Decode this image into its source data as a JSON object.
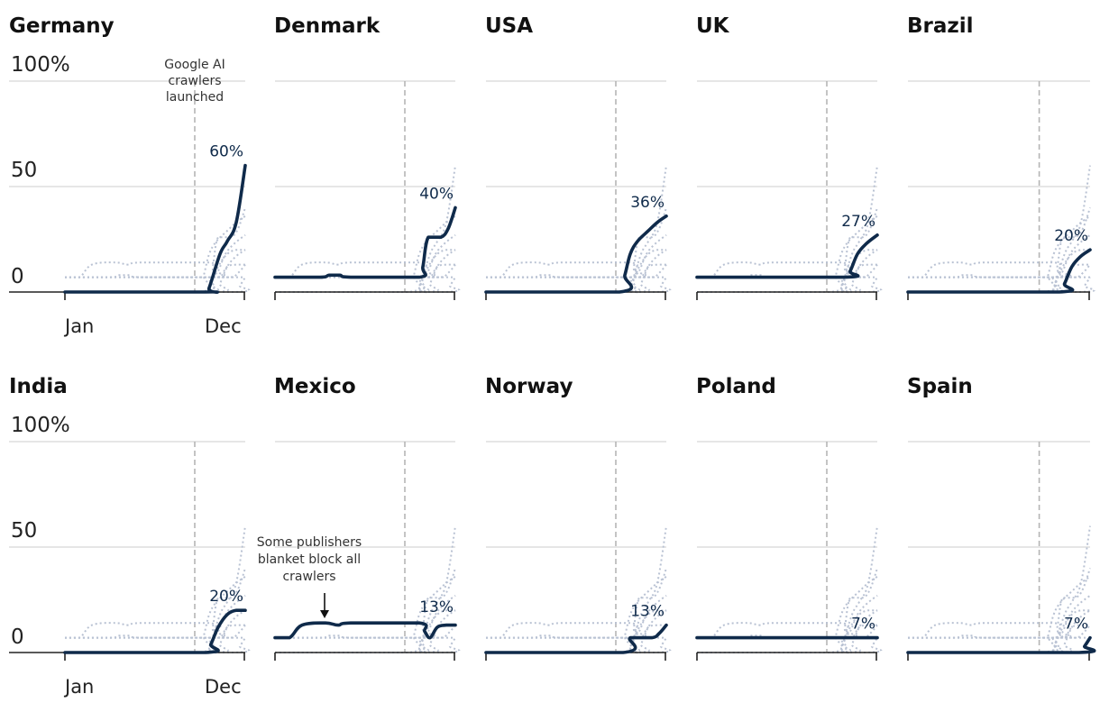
{
  "chart_data": {
    "type": "line",
    "x_range": [
      "Jan",
      "Dec"
    ],
    "xticks": [
      "Jan",
      "Dec"
    ],
    "y_range": [
      0,
      100
    ],
    "yticks": [
      "100%",
      "50",
      "0"
    ],
    "grid": true,
    "launch_marker_fraction_of_year": 0.79,
    "annotations": {
      "launch": "Google AI crawlers launched",
      "mexico": "Some publishers blanket block all crawlers"
    },
    "panels": [
      {
        "country": "Germany",
        "end_label": "60%",
        "points": [
          [
            0,
            0
          ],
          [
            0.78,
            0
          ],
          [
            0.8,
            2
          ],
          [
            0.86,
            18
          ],
          [
            0.9,
            24
          ],
          [
            0.95,
            33
          ],
          [
            1.0,
            60
          ]
        ]
      },
      {
        "country": "Denmark",
        "end_label": "40%",
        "points": [
          [
            0,
            7
          ],
          [
            0.25,
            7
          ],
          [
            0.3,
            8
          ],
          [
            0.36,
            8
          ],
          [
            0.42,
            7
          ],
          [
            0.8,
            7
          ],
          [
            0.82,
            12
          ],
          [
            0.85,
            26
          ],
          [
            0.92,
            26
          ],
          [
            0.96,
            30
          ],
          [
            1.0,
            40
          ]
        ]
      },
      {
        "country": "USA",
        "end_label": "36%",
        "points": [
          [
            0,
            0
          ],
          [
            0.74,
            0
          ],
          [
            0.77,
            8
          ],
          [
            0.8,
            18
          ],
          [
            0.84,
            24
          ],
          [
            0.9,
            29
          ],
          [
            0.95,
            33
          ],
          [
            1.0,
            36
          ]
        ]
      },
      {
        "country": "UK",
        "end_label": "27%",
        "points": [
          [
            0,
            7
          ],
          [
            0.82,
            7
          ],
          [
            0.85,
            10
          ],
          [
            0.89,
            18
          ],
          [
            0.94,
            23
          ],
          [
            1.0,
            27
          ]
        ]
      },
      {
        "country": "Brazil",
        "end_label": "20%",
        "points": [
          [
            0,
            0
          ],
          [
            0.83,
            0
          ],
          [
            0.86,
            4
          ],
          [
            0.9,
            12
          ],
          [
            0.95,
            17
          ],
          [
            1.0,
            20
          ]
        ]
      },
      {
        "country": "India",
        "end_label": "20%",
        "points": [
          [
            0,
            0
          ],
          [
            0.78,
            0
          ],
          [
            0.81,
            4
          ],
          [
            0.85,
            12
          ],
          [
            0.9,
            18
          ],
          [
            0.95,
            20
          ],
          [
            1.0,
            20
          ]
        ]
      },
      {
        "country": "Mexico",
        "end_label": "13%",
        "points": [
          [
            0,
            7
          ],
          [
            0.08,
            7
          ],
          [
            0.15,
            13
          ],
          [
            0.28,
            14
          ],
          [
            0.35,
            13
          ],
          [
            0.42,
            14
          ],
          [
            0.8,
            14
          ],
          [
            0.83,
            10
          ],
          [
            0.86,
            7
          ],
          [
            0.9,
            12
          ],
          [
            0.95,
            13
          ],
          [
            1.0,
            13
          ]
        ]
      },
      {
        "country": "Norway",
        "end_label": "13%",
        "points": [
          [
            0,
            0
          ],
          [
            0.76,
            0
          ],
          [
            0.8,
            7
          ],
          [
            0.92,
            7
          ],
          [
            0.96,
            9
          ],
          [
            1.0,
            13
          ]
        ]
      },
      {
        "country": "Poland",
        "end_label": "7%",
        "points": [
          [
            0,
            7
          ],
          [
            1.0,
            7
          ]
        ]
      },
      {
        "country": "Spain",
        "end_label": "7%",
        "points": [
          [
            0,
            0
          ],
          [
            0.94,
            0
          ],
          [
            0.97,
            3
          ],
          [
            1.0,
            7
          ]
        ]
      }
    ]
  }
}
